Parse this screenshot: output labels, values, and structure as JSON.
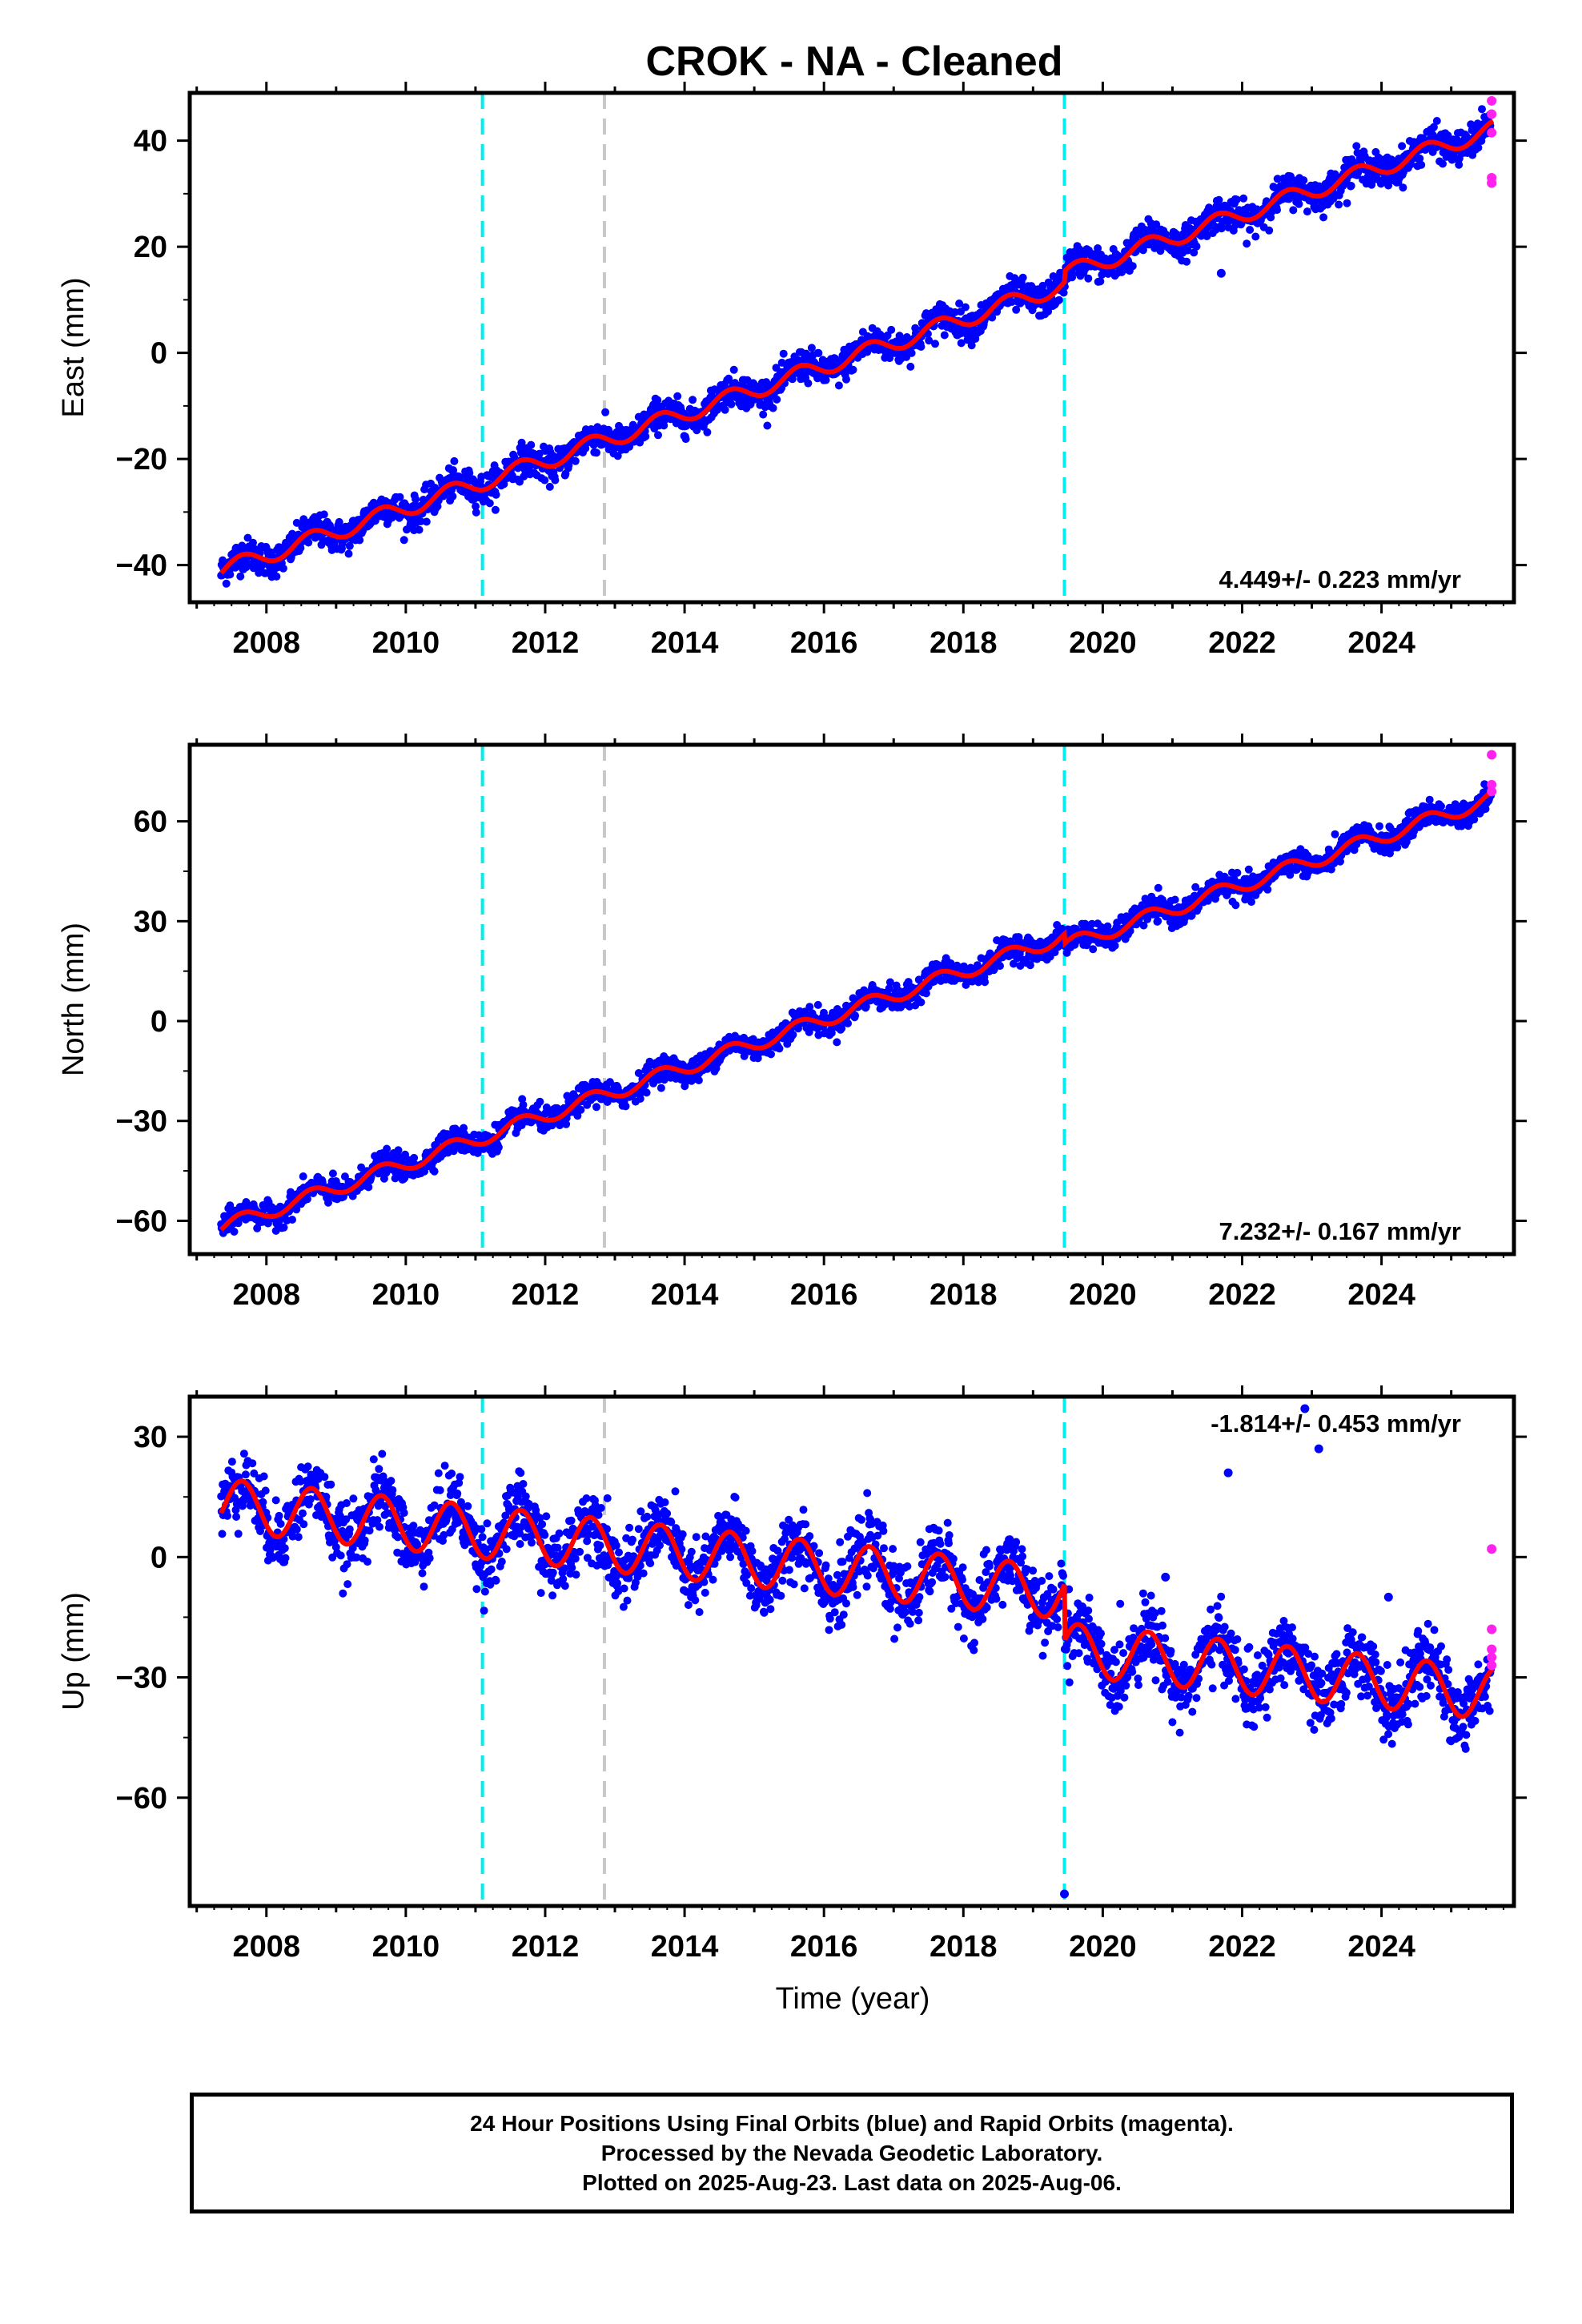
{
  "title": "CROK  - NA - Cleaned",
  "xlabel": "Time (year)",
  "footer": [
    "24 Hour Positions Using Final Orbits (blue) and Rapid Orbits (magenta).",
    "Processed by the Nevada Geodetic Laboratory.",
    "Plotted on 2025-Aug-23. Last data on 2025-Aug-06."
  ],
  "colors": {
    "final_orbits": "#0000ff",
    "rapid_orbits": "#ff22ee",
    "model": "#ff0000",
    "equipment_change": "#00eeee",
    "other_event": "#c8c8c8"
  },
  "chart_data": [
    {
      "type": "scatter",
      "ylabel": "East (mm)",
      "xlim": [
        2006.9,
        2025.9
      ],
      "ylim": [
        -47,
        49
      ],
      "xticks": [
        2008,
        2010,
        2012,
        2014,
        2016,
        2018,
        2020,
        2022,
        2024
      ],
      "xtick_labels": [
        "2008",
        "2010",
        "2012",
        "2014",
        "2016",
        "2018",
        "2020",
        "2022",
        "2024"
      ],
      "yticks": [
        -40,
        -20,
        0,
        20,
        40
      ],
      "ytick_labels": [
        "−40",
        "−20",
        "0",
        "20",
        "40"
      ],
      "rate_label": "4.449+/- 0.223 mm/yr",
      "rate_position": "bottom-right",
      "trend": {
        "start": [
          2007.35,
          -41
        ],
        "rate": 4.449,
        "seasonal_amplitude": 1.6
      },
      "steps": [
        {
          "x": 2019.45,
          "dy": 2
        }
      ],
      "vlines": [
        {
          "x": 2011.1,
          "kind": "equipment_change"
        },
        {
          "x": 2012.85,
          "kind": "other_event"
        },
        {
          "x": 2019.45,
          "kind": "equipment_change"
        }
      ],
      "rapid_points": [
        [
          2025.58,
          47.5
        ],
        [
          2025.58,
          45.0
        ],
        [
          2025.58,
          41.5
        ],
        [
          2025.58,
          33.0
        ],
        [
          2025.58,
          32.0
        ]
      ],
      "outliers": [
        [
          2021.7,
          15.0
        ]
      ]
    },
    {
      "type": "scatter",
      "ylabel": "North (mm)",
      "xlim": [
        2006.9,
        2025.9
      ],
      "ylim": [
        -70,
        83
      ],
      "xticks": [
        2008,
        2010,
        2012,
        2014,
        2016,
        2018,
        2020,
        2022,
        2024
      ],
      "xtick_labels": [
        "2008",
        "2010",
        "2012",
        "2014",
        "2016",
        "2018",
        "2020",
        "2022",
        "2024"
      ],
      "yticks": [
        -60,
        -30,
        0,
        30,
        60
      ],
      "ytick_labels": [
        "−60",
        "−30",
        "0",
        "30",
        "60"
      ],
      "rate_label": "7.232+/- 0.167 mm/yr",
      "rate_position": "bottom-right",
      "trend": {
        "start": [
          2007.35,
          -62
        ],
        "rate": 7.232,
        "seasonal_amplitude": 2.2
      },
      "steps": [
        {
          "x": 2019.45,
          "dy": -3
        }
      ],
      "vlines": [
        {
          "x": 2011.1,
          "kind": "equipment_change"
        },
        {
          "x": 2012.85,
          "kind": "other_event"
        },
        {
          "x": 2019.45,
          "kind": "equipment_change"
        }
      ],
      "rapid_points": [
        [
          2025.58,
          80.0
        ],
        [
          2025.58,
          71.0
        ],
        [
          2025.58,
          69.0
        ]
      ],
      "outliers": []
    },
    {
      "type": "scatter",
      "ylabel": "Up (mm)",
      "xlim": [
        2006.9,
        2025.9
      ],
      "ylim": [
        -87,
        40
      ],
      "xticks": [
        2008,
        2010,
        2012,
        2014,
        2016,
        2018,
        2020,
        2022,
        2024
      ],
      "xtick_labels": [
        "2008",
        "2010",
        "2012",
        "2014",
        "2016",
        "2018",
        "2020",
        "2022",
        "2024"
      ],
      "yticks": [
        -60,
        -30,
        0,
        30
      ],
      "ytick_labels": [
        "−60",
        "−30",
        "0",
        "30"
      ],
      "rate_label": "-1.814+/- 0.453 mm/yr",
      "rate_position": "top-right",
      "trend": {
        "start": [
          2007.35,
          13
        ],
        "rate": -1.814,
        "seasonal_amplitude": 6.5
      },
      "steps": [
        {
          "x": 2019.45,
          "dy": -14
        }
      ],
      "vlines": [
        {
          "x": 2011.1,
          "kind": "equipment_change"
        },
        {
          "x": 2012.85,
          "kind": "other_event"
        },
        {
          "x": 2019.45,
          "kind": "equipment_change"
        }
      ],
      "rapid_points": [
        [
          2025.58,
          2.0
        ],
        [
          2025.58,
          -18.0
        ],
        [
          2025.58,
          -23.0
        ],
        [
          2025.58,
          -25.0
        ],
        [
          2025.58,
          -27.0
        ]
      ],
      "outliers": [
        [
          2019.45,
          -84.0
        ],
        [
          2022.9,
          37.0
        ],
        [
          2023.1,
          27.0
        ],
        [
          2021.8,
          21.0
        ],
        [
          2024.1,
          -10.0
        ],
        [
          2020.9,
          -5.0
        ]
      ]
    }
  ]
}
